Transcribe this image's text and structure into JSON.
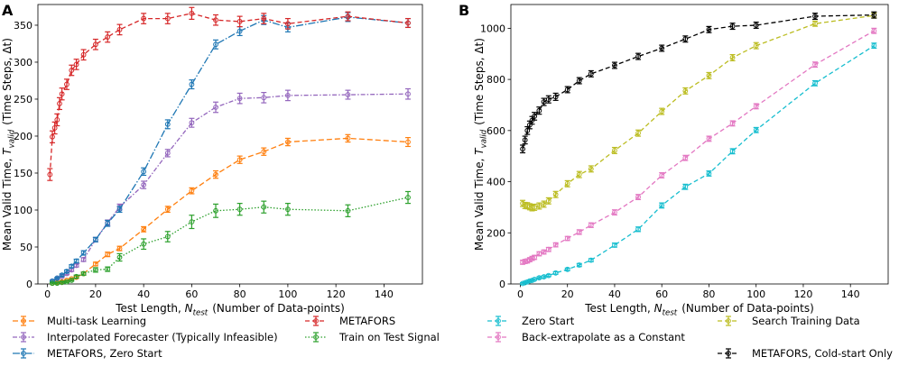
{
  "chart_data": [
    {
      "type": "line",
      "panel_label": "A",
      "xlabel": "Test Length, N_test (Number of Data-points)",
      "ylabel": "Mean Valid Time, T_valid (Time Steps, Δt)",
      "xlim": [
        -4,
        156
      ],
      "ylim": [
        0,
        378
      ],
      "xticks": [
        0,
        20,
        40,
        60,
        80,
        100,
        120,
        140
      ],
      "yticks": [
        0,
        50,
        100,
        150,
        200,
        250,
        300,
        350
      ],
      "grid": false,
      "legend": "below",
      "series": [
        {
          "name": "Multi-task Learning",
          "color": "#ff7f0e",
          "dash": "6,3",
          "x": [
            2,
            4,
            6,
            8,
            10,
            12,
            15,
            20,
            25,
            30,
            40,
            50,
            60,
            70,
            80,
            90,
            100,
            125,
            150
          ],
          "y": [
            1,
            2,
            3,
            5,
            7,
            9,
            14,
            27,
            40,
            48,
            74,
            101,
            126,
            148,
            168,
            179,
            192,
            197,
            192
          ],
          "err": [
            1,
            1,
            1,
            1,
            1,
            1.5,
            2,
            2.5,
            3,
            3,
            3.5,
            4,
            4,
            5,
            5,
            5,
            5,
            5,
            6
          ]
        },
        {
          "name": "Interpolated Forecaster (Typically Infeasible)",
          "color": "#9467bd",
          "dash": "5,2,1.5,2",
          "x": [
            2,
            4,
            6,
            8,
            10,
            12,
            15,
            20,
            25,
            30,
            40,
            50,
            60,
            70,
            80,
            90,
            100,
            125,
            150
          ],
          "y": [
            4,
            7,
            10,
            14,
            19,
            25,
            33,
            60,
            83,
            104,
            134,
            177,
            218,
            239,
            251,
            252,
            255,
            256,
            257
          ],
          "err": [
            1,
            1,
            1,
            1.5,
            2,
            2,
            2.5,
            3,
            3.5,
            4,
            5,
            5,
            6,
            7,
            7,
            7,
            7,
            6,
            7
          ]
        },
        {
          "name": "METAFORS, Zero Start",
          "color": "#1f77b4",
          "dash": "8,2,1.5,2",
          "x": [
            2,
            4,
            6,
            8,
            10,
            12,
            15,
            20,
            25,
            30,
            40,
            50,
            60,
            70,
            80,
            90,
            100,
            125,
            150
          ],
          "y": [
            4,
            8,
            12,
            17,
            24,
            31,
            42,
            60,
            82,
            101,
            152,
            216,
            270,
            324,
            342,
            357,
            347,
            361,
            353
          ],
          "err": [
            1,
            1,
            1.5,
            2,
            2,
            2.5,
            3,
            3,
            4,
            4,
            5,
            6,
            6,
            6,
            6,
            6,
            6,
            6,
            6
          ]
        },
        {
          "name": "METAFORS",
          "color": "#d62728",
          "dash": "5,3",
          "x": [
            1,
            2,
            3,
            4,
            5,
            6,
            8,
            10,
            12,
            15,
            20,
            25,
            30,
            40,
            50,
            60,
            70,
            80,
            90,
            100,
            125,
            150
          ],
          "y": [
            148,
            199,
            211,
            222,
            244,
            257,
            270,
            289,
            297,
            310,
            324,
            334,
            344,
            359,
            359,
            366,
            357,
            355,
            359,
            352,
            362,
            353
          ],
          "err": [
            8,
            8,
            8,
            8,
            8,
            8,
            7,
            7,
            7,
            7,
            7,
            7,
            7,
            7,
            7,
            8,
            7,
            7,
            7,
            7,
            6,
            6
          ]
        },
        {
          "name": "Train on Test Signal",
          "color": "#2ca02c",
          "dash": "1.5,2",
          "x": [
            2,
            4,
            6,
            8,
            10,
            12,
            15,
            20,
            25,
            30,
            40,
            50,
            60,
            70,
            80,
            90,
            100,
            125,
            150
          ],
          "y": [
            1,
            1,
            2,
            3,
            5,
            10,
            14,
            19,
            20,
            36,
            54,
            64,
            84,
            99,
            101,
            104,
            101,
            99,
            117
          ],
          "err": [
            1,
            1,
            1,
            1,
            1,
            2,
            2,
            3,
            3,
            5,
            7,
            7,
            9,
            9,
            8,
            8,
            8,
            8,
            8
          ]
        }
      ]
    },
    {
      "type": "line",
      "panel_label": "B",
      "xlabel": "Test Length, N_test (Number of Data-points)",
      "ylabel": "Mean Valid Time, T_valid (Time Steps, Δt)",
      "xlim": [
        -4,
        156
      ],
      "ylim": [
        0,
        1093
      ],
      "xticks": [
        0,
        20,
        40,
        60,
        80,
        100,
        120,
        140
      ],
      "yticks": [
        0,
        200,
        400,
        600,
        800,
        1000
      ],
      "grid": false,
      "legend": "below",
      "series": [
        {
          "name": "Zero Start",
          "color": "#17becf",
          "dash": "5,3",
          "x": [
            1,
            2,
            3,
            4,
            5,
            6,
            8,
            10,
            12,
            15,
            20,
            25,
            30,
            40,
            50,
            60,
            70,
            80,
            90,
            100,
            125,
            150
          ],
          "y": [
            2,
            5,
            8,
            12,
            14,
            18,
            24,
            28,
            33,
            43,
            57,
            74,
            93,
            152,
            214,
            307,
            380,
            432,
            519,
            602,
            785,
            932
          ],
          "err": [
            3,
            3,
            3,
            3,
            3,
            3,
            4,
            4,
            4,
            5,
            5,
            6,
            6,
            8,
            9,
            10,
            10,
            10,
            10,
            10,
            10,
            10
          ]
        },
        {
          "name": "Back-extrapolate as a Constant",
          "color": "#e377c2",
          "dash": "5,3",
          "x": [
            1,
            2,
            3,
            4,
            5,
            6,
            8,
            10,
            12,
            15,
            20,
            25,
            30,
            40,
            50,
            60,
            70,
            80,
            90,
            100,
            125,
            150
          ],
          "y": [
            85,
            88,
            90,
            95,
            100,
            104,
            118,
            125,
            135,
            153,
            178,
            203,
            230,
            280,
            340,
            425,
            493,
            568,
            628,
            695,
            858,
            990
          ],
          "err": [
            8,
            8,
            8,
            8,
            8,
            8,
            8,
            8,
            8,
            8,
            8,
            9,
            9,
            10,
            10,
            10,
            10,
            10,
            10,
            10,
            10,
            10
          ]
        },
        {
          "name": "Search Training Data",
          "color": "#bcbd22",
          "dash": "5,3",
          "x": [
            1,
            2,
            3,
            4,
            5,
            6,
            8,
            10,
            12,
            15,
            20,
            25,
            30,
            40,
            50,
            60,
            70,
            80,
            90,
            100,
            125,
            150
          ],
          "y": [
            315,
            307,
            306,
            302,
            298,
            300,
            305,
            312,
            325,
            350,
            392,
            428,
            450,
            522,
            590,
            675,
            755,
            815,
            885,
            932,
            1018,
            1050
          ],
          "err": [
            12,
            12,
            12,
            12,
            12,
            12,
            12,
            12,
            12,
            12,
            12,
            12,
            12,
            12,
            12,
            12,
            12,
            12,
            12,
            12,
            10,
            10
          ]
        },
        {
          "name": "METAFORS, Cold-start Only",
          "color": "#000000",
          "dash": "5,3",
          "x": [
            1,
            2,
            3,
            4,
            5,
            6,
            8,
            10,
            12,
            15,
            20,
            25,
            30,
            40,
            50,
            60,
            70,
            80,
            90,
            100,
            125,
            150
          ],
          "y": [
            528,
            563,
            600,
            622,
            640,
            656,
            678,
            712,
            722,
            732,
            760,
            795,
            822,
            855,
            890,
            922,
            958,
            995,
            1008,
            1012,
            1047,
            1052
          ],
          "err": [
            15,
            15,
            15,
            15,
            15,
            15,
            14,
            14,
            14,
            14,
            12,
            12,
            12,
            12,
            12,
            12,
            12,
            12,
            12,
            12,
            12,
            12
          ]
        }
      ]
    }
  ]
}
